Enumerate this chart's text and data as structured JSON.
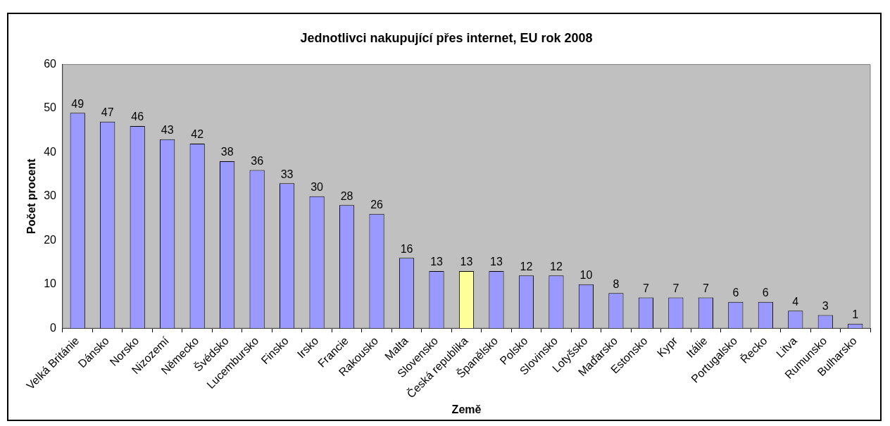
{
  "chart_data": {
    "type": "bar",
    "title": "Jednotlivci nakupující přes internet, EU rok 2008",
    "xlabel": "Země",
    "ylabel": "Počet procent",
    "categories": [
      "Velká Británie",
      "Dánsko",
      "Norsko",
      "Nizozemí",
      "Německo",
      "Švédsko",
      "Lucembursko",
      "Finsko",
      "Irsko",
      "Francie",
      "Rakousko",
      "Malta",
      "Slovensko",
      "Česká republika",
      "Španělsko",
      "Polsko",
      "Slovinsko",
      "Lotyšsko",
      "Maďarsko",
      "Estonsko",
      "Kypr",
      "Itálie",
      "Portugalsko",
      "Řecko",
      "Litva",
      "Rumunsko",
      "Bulharsko"
    ],
    "values": [
      49,
      47,
      46,
      43,
      42,
      38,
      36,
      33,
      30,
      28,
      26,
      16,
      13,
      13,
      13,
      12,
      12,
      10,
      8,
      7,
      7,
      7,
      6,
      6,
      4,
      3,
      1
    ],
    "colors": [
      "#9999ff",
      "#9999ff",
      "#9999ff",
      "#9999ff",
      "#9999ff",
      "#9999ff",
      "#9999ff",
      "#9999ff",
      "#9999ff",
      "#9999ff",
      "#9999ff",
      "#9999ff",
      "#9999ff",
      "#ffff99",
      "#9999ff",
      "#9999ff",
      "#9999ff",
      "#9999ff",
      "#9999ff",
      "#9999ff",
      "#9999ff",
      "#9999ff",
      "#9999ff",
      "#9999ff",
      "#9999ff",
      "#9999ff",
      "#9999ff"
    ],
    "ylim": [
      0,
      60
    ],
    "yticks": [
      0,
      10,
      20,
      30,
      40,
      50,
      60
    ],
    "grid": false,
    "legend": false,
    "data_labels": true
  }
}
